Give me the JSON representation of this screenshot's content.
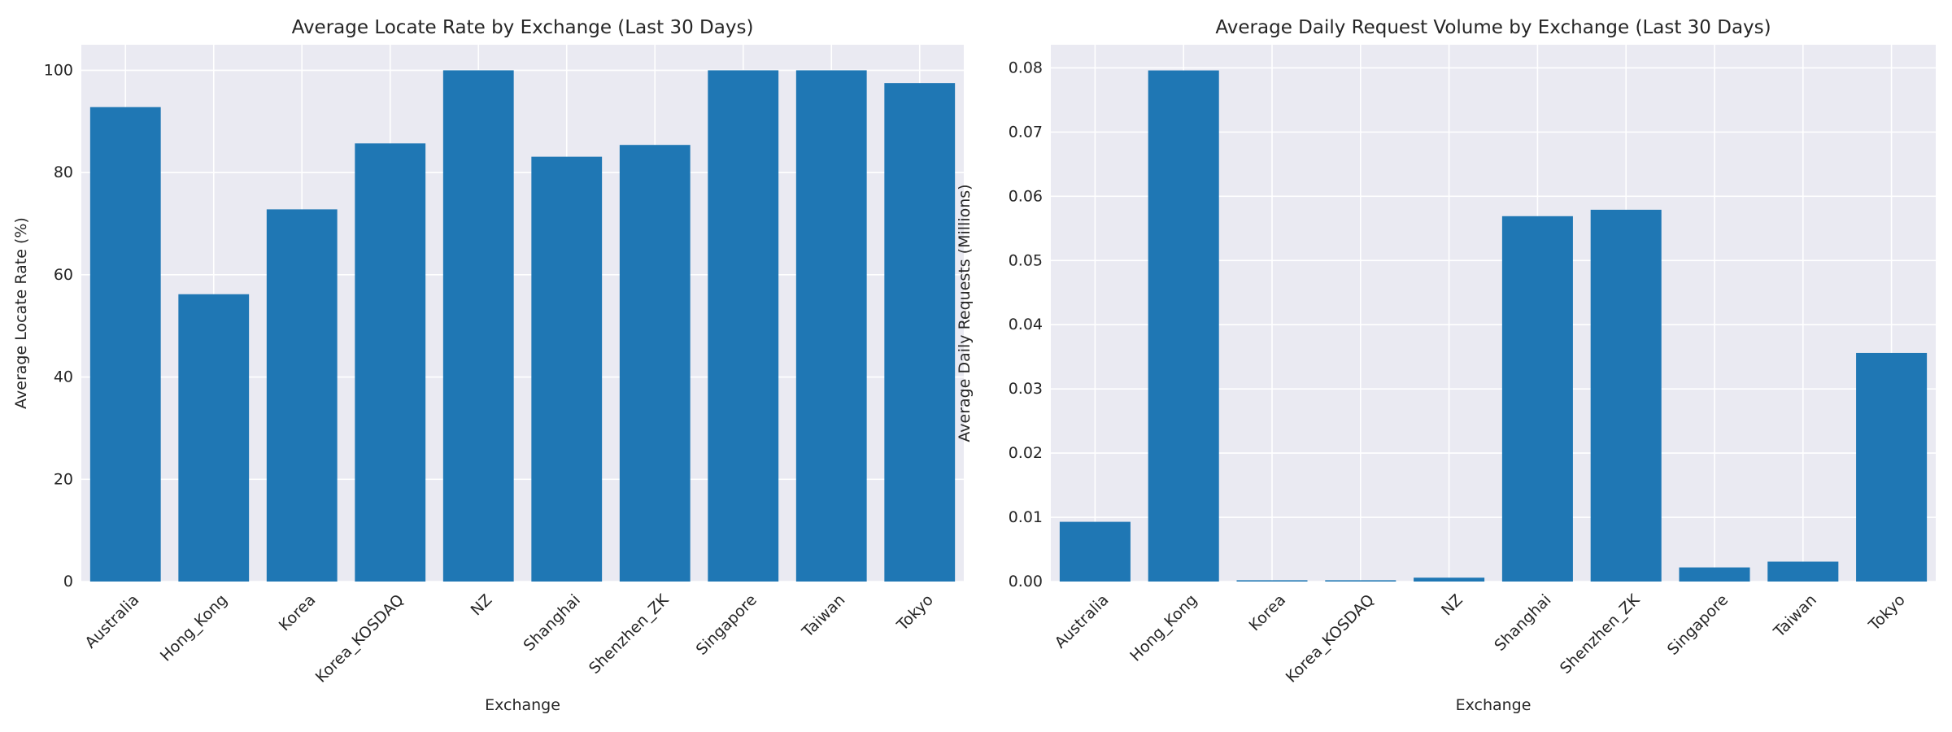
{
  "chart_data": [
    {
      "type": "bar",
      "title": "Average Locate Rate by Exchange (Last 30 Days)",
      "xlabel": "Exchange",
      "ylabel": "Average Locate Rate (%)",
      "categories": [
        "Australia",
        "Hong_Kong",
        "Korea",
        "Korea_KOSDAQ",
        "NZ",
        "Shanghai",
        "Shenzhen_ZK",
        "Singapore",
        "Taiwan",
        "Tokyo"
      ],
      "values": [
        92.8,
        56.2,
        72.8,
        85.7,
        100.0,
        83.1,
        85.4,
        100.0,
        100.0,
        97.5
      ],
      "ylim": [
        0,
        105
      ],
      "yticks": [
        0,
        20,
        40,
        60,
        80,
        100
      ],
      "ytick_labels": [
        "0",
        "20",
        "40",
        "60",
        "80",
        "100"
      ],
      "grid": true,
      "color": "#1f77b4",
      "background": "#eaeaf2"
    },
    {
      "type": "bar",
      "title": "Average Daily Request Volume by Exchange (Last 30 Days)",
      "xlabel": "Exchange",
      "ylabel": "Average Daily Requests (Millions)",
      "categories": [
        "Australia",
        "Hong_Kong",
        "Korea",
        "Korea_KOSDAQ",
        "NZ",
        "Shanghai",
        "Shenzhen_ZK",
        "Singapore",
        "Taiwan",
        "Tokyo"
      ],
      "values": [
        0.0093,
        0.0796,
        0.0002,
        0.0002,
        0.0006,
        0.0569,
        0.0579,
        0.0022,
        0.0031,
        0.0356
      ],
      "ylim": [
        0,
        0.0836
      ],
      "yticks": [
        0,
        0.01,
        0.02,
        0.03,
        0.04,
        0.05,
        0.06,
        0.07,
        0.08
      ],
      "ytick_labels": [
        "0.00",
        "0.01",
        "0.02",
        "0.03",
        "0.04",
        "0.05",
        "0.06",
        "0.07",
        "0.08"
      ],
      "grid": true,
      "color": "#1f77b4",
      "background": "#eaeaf2"
    }
  ]
}
